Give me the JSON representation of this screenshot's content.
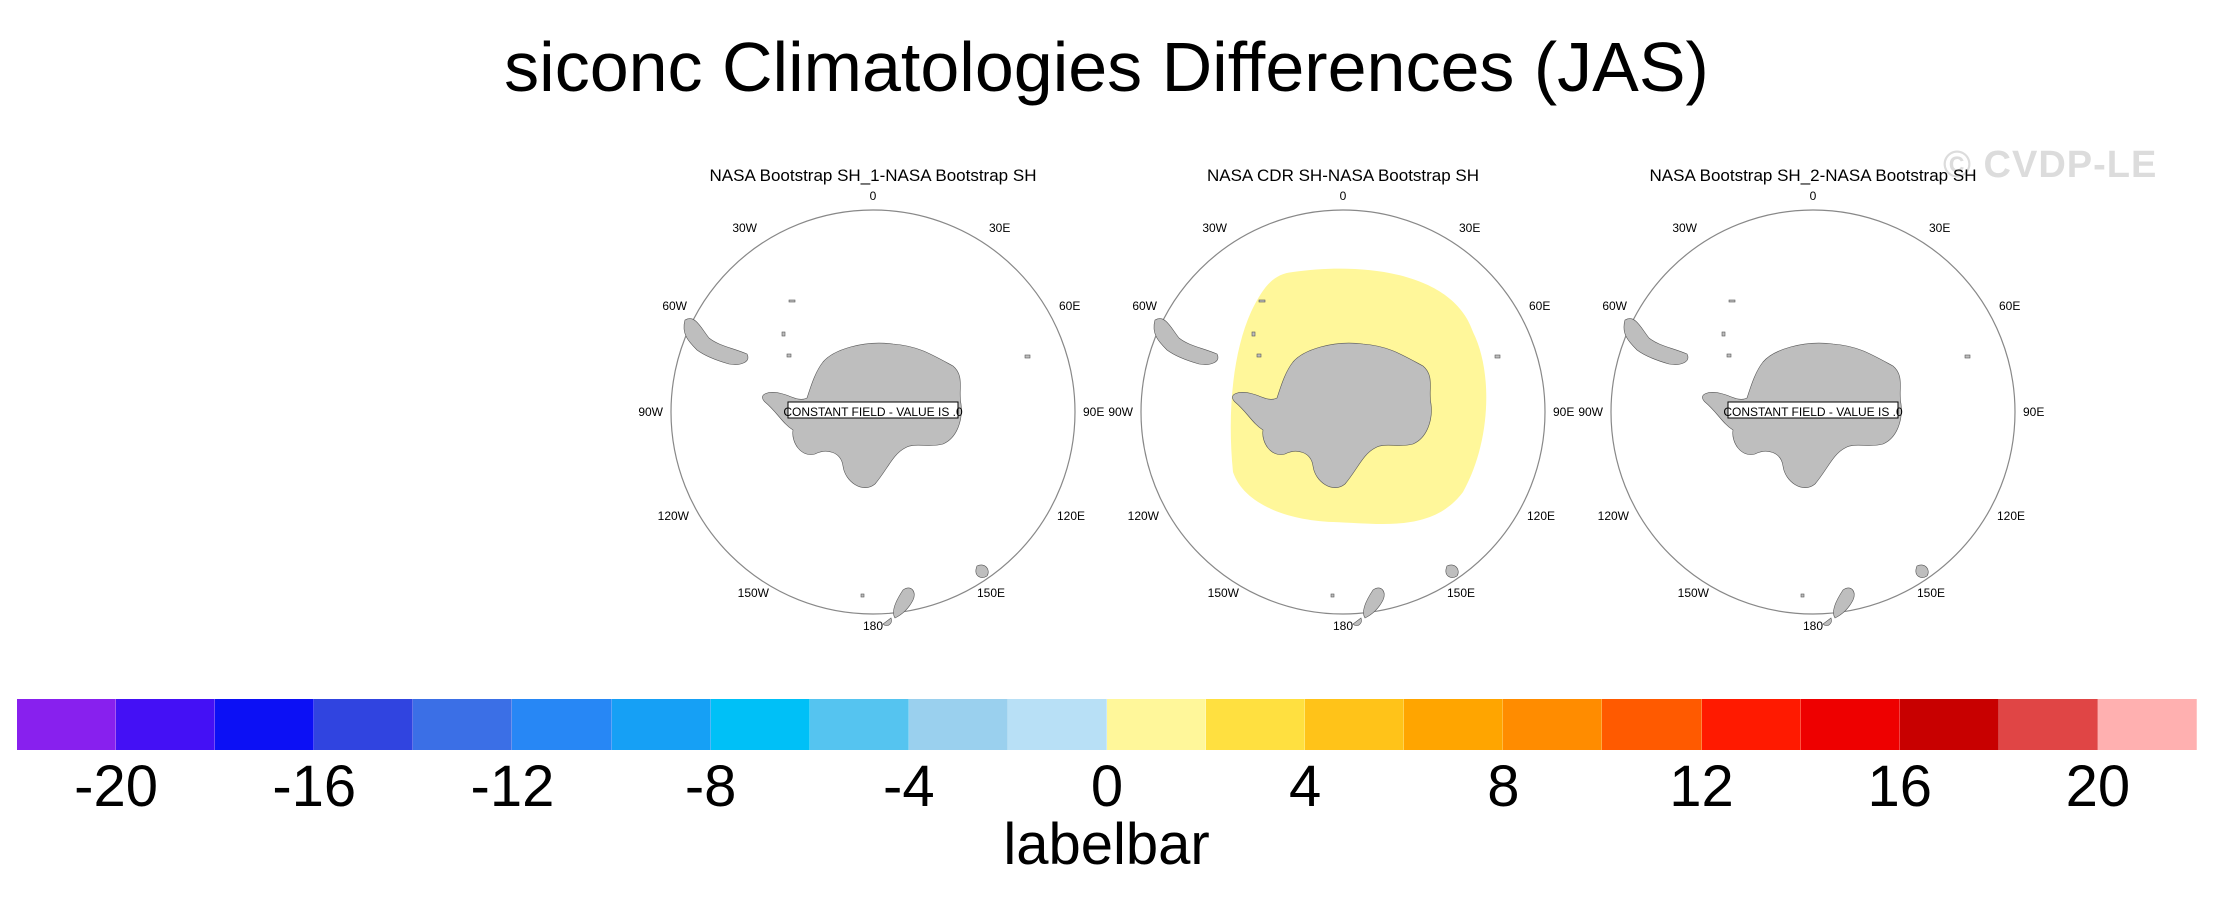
{
  "title": "siconc Climatologies Differences (JAS)",
  "watermark": "© CVDP-LE",
  "panels": [
    {
      "title": "NASA Bootstrap SH_1-NASA Bootstrap SH",
      "note": "CONSTANT FIELD - VALUE IS .0",
      "field": "constant"
    },
    {
      "title": "NASA CDR SH-NASA Bootstrap SH",
      "note": "",
      "field": "ring"
    },
    {
      "title": "NASA Bootstrap SH_2-NASA Bootstrap SH",
      "note": "CONSTANT FIELD - VALUE IS .0",
      "field": "constant"
    }
  ],
  "map_labels": {
    "top": "0",
    "bottom": "180",
    "upper_left": "30W",
    "upper_right": "30E",
    "mid_upper_left": "60W",
    "mid_upper_right": "60E",
    "left": "90W",
    "right": "90E",
    "mid_lower_left": "120W",
    "mid_lower_right": "120E",
    "lower_left": "150W",
    "lower_right": "150E"
  },
  "colorbar": {
    "label": "labelbar",
    "colors": [
      "#8820ee",
      "#4410f5",
      "#0c10f5",
      "#3044e0",
      "#3b6fe6",
      "#2787f5",
      "#16a0f5",
      "#00c0f7",
      "#55c4f0",
      "#9ad0ee",
      "#b8e0f6",
      "#fff79a",
      "#ffe040",
      "#ffc319",
      "#ffa500",
      "#ff8c00",
      "#ff5a00",
      "#ff1a00",
      "#ee0000",
      "#c80000",
      "#e04545",
      "#ffb0b0"
    ],
    "ticks": [
      "-20",
      "-16",
      "-12",
      "-8",
      "-4",
      "0",
      "4",
      "8",
      "12",
      "16",
      "20"
    ]
  },
  "colors": {
    "land": "#bebebe",
    "ring_fill": "#fff79a",
    "circle": "#888888"
  }
}
